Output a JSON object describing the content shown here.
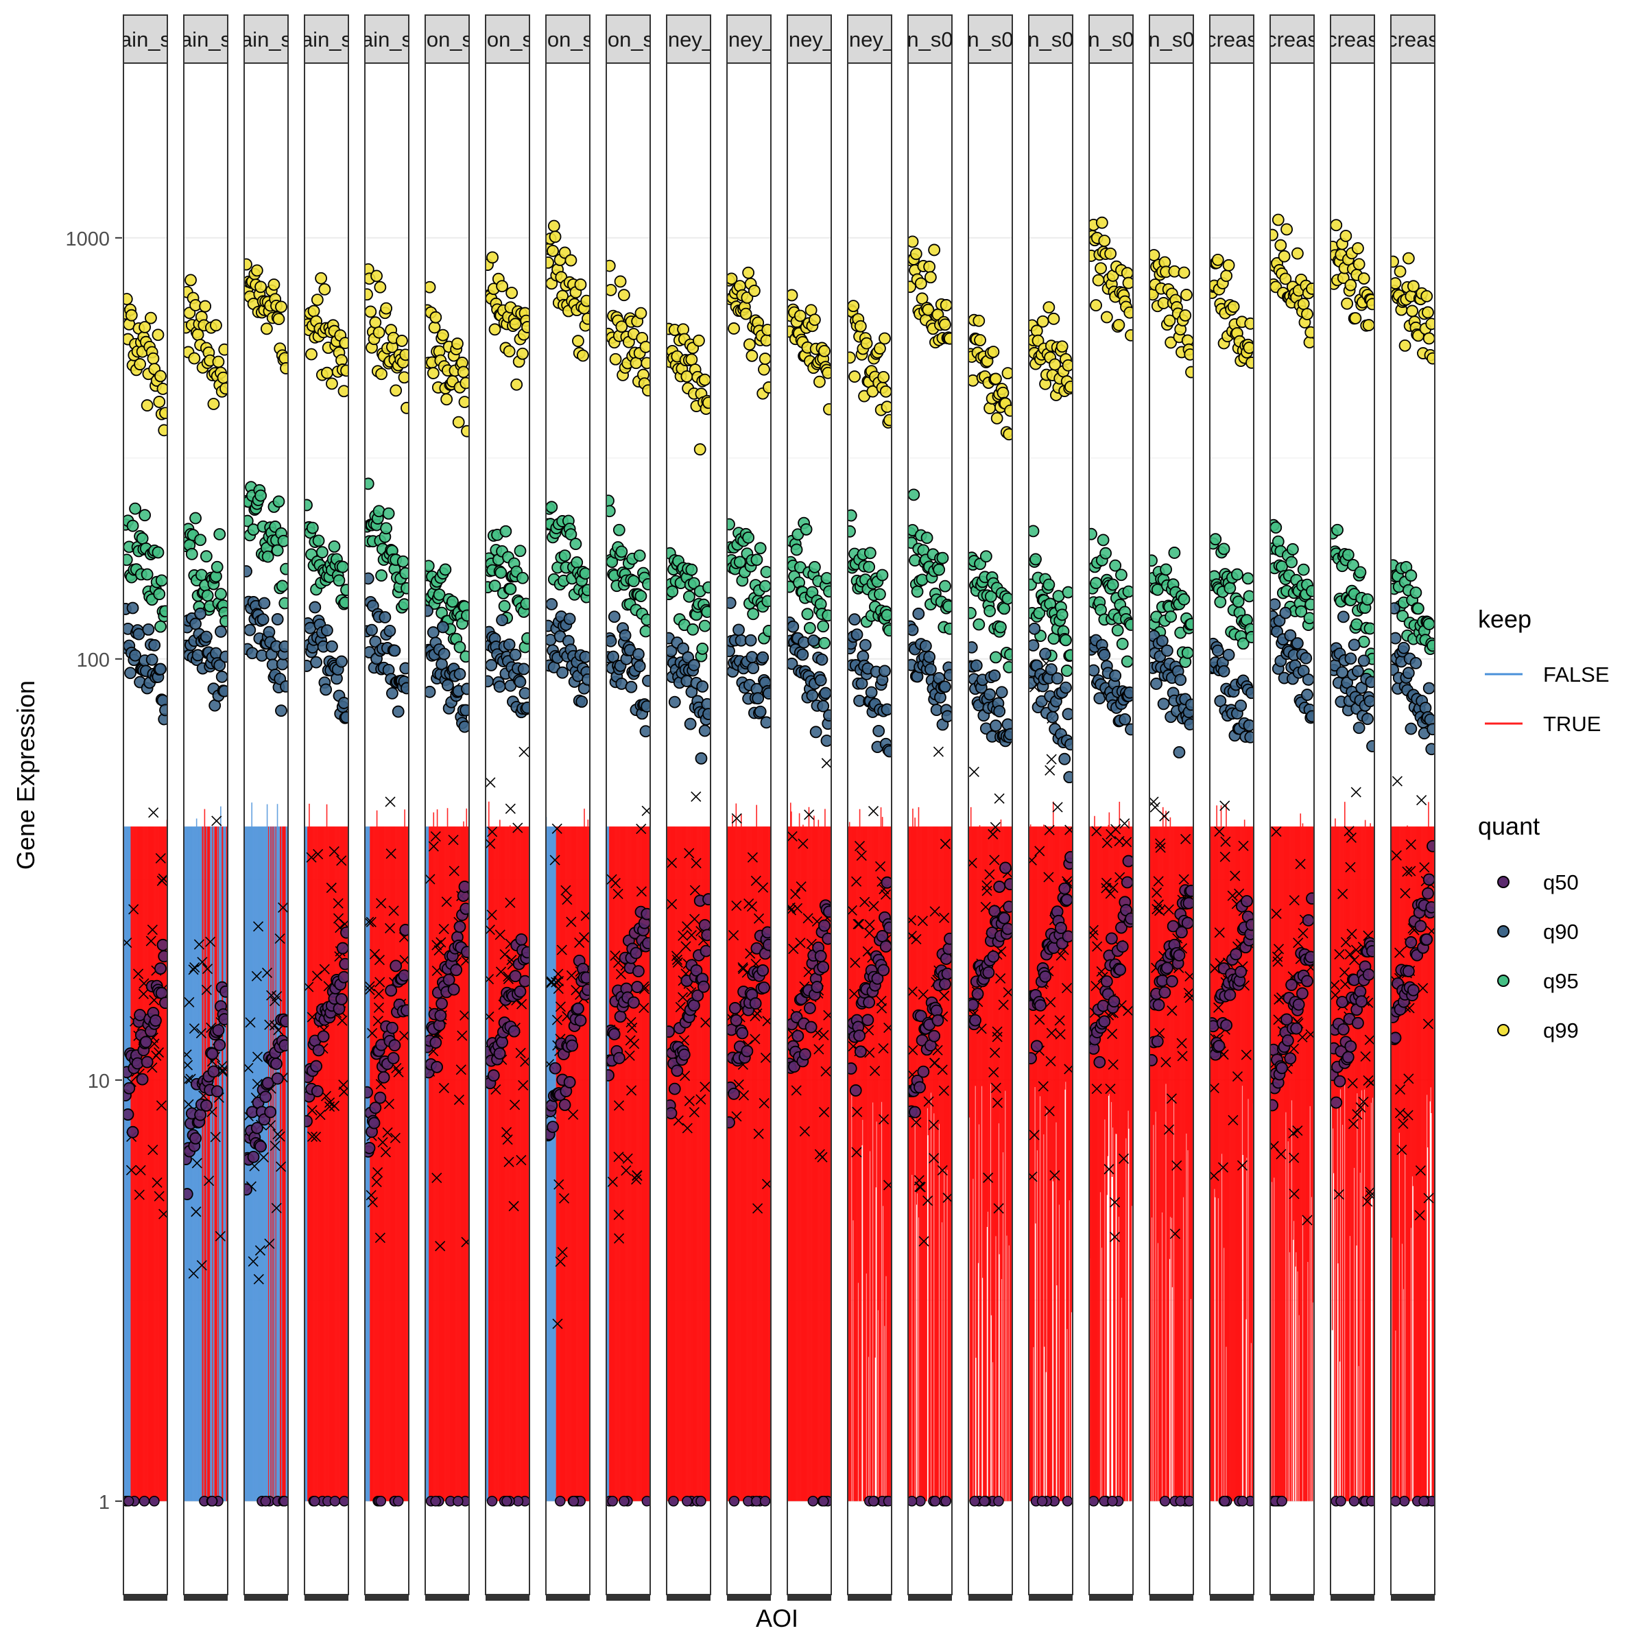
{
  "chart_data": {
    "type": "scatter",
    "title": "",
    "xlabel": "AOI",
    "ylabel": "Gene Expression",
    "y_scale": "log10",
    "ylim": [
      0.6,
      2600
    ],
    "y_ticks": [
      1,
      10,
      100,
      1000
    ],
    "y_tick_labels": [
      "1",
      "10",
      "100",
      "1000"
    ],
    "grid": true,
    "legend_position": "right",
    "panels": [
      "ain_s",
      "ain_s",
      "ain_s",
      "ain_s",
      "ain_s",
      "lon_s",
      "lon_s",
      "lon_s",
      "lon_s",
      "lney_",
      "lney_",
      "lney_",
      "lney_",
      "n_s0",
      "n_s0",
      "n_s0",
      "n_s0",
      "n_s0",
      "creas",
      "creas",
      "creas",
      "creas"
    ],
    "keep_legend": {
      "title": "keep",
      "items": [
        {
          "label": "FALSE",
          "color": "#4a90d9"
        },
        {
          "label": "TRUE",
          "color": "#ff0000"
        }
      ]
    },
    "quant_legend": {
      "title": "quant",
      "items": [
        {
          "label": "q50",
          "color": "#5b2a6e"
        },
        {
          "label": "q90",
          "color": "#3e6689"
        },
        {
          "label": "q95",
          "color": "#44bf84"
        },
        {
          "label": "q99",
          "color": "#f2e13d"
        }
      ]
    },
    "series": [
      {
        "name": "q99",
        "color": "#f2e13d",
        "median_by_panel": [
          520,
          560,
          700,
          560,
          560,
          520,
          650,
          750,
          580,
          470,
          640,
          560,
          520,
          700,
          470,
          520,
          800,
          720,
          660,
          780,
          780,
          680
        ]
      },
      {
        "name": "q95",
        "color": "#44bf84",
        "median_by_panel": [
          170,
          160,
          200,
          170,
          180,
          135,
          155,
          180,
          165,
          140,
          165,
          155,
          155,
          160,
          135,
          130,
          140,
          135,
          140,
          160,
          150,
          130
        ]
      },
      {
        "name": "q90",
        "color": "#3e6689",
        "median_by_panel": [
          95,
          100,
          110,
          100,
          105,
          90,
          95,
          100,
          95,
          85,
          95,
          90,
          88,
          92,
          80,
          80,
          88,
          88,
          85,
          100,
          90,
          82
        ]
      },
      {
        "name": "q50",
        "color": "#5b2a6e",
        "median_by_panel": [
          13,
          10,
          9,
          14,
          12,
          17,
          15,
          12,
          17,
          15,
          15,
          16,
          16,
          14,
          20,
          20,
          18,
          20,
          17,
          14,
          15,
          19
        ]
      }
    ],
    "keep_false_by_panel": [
      0.3,
      0.75,
      0.95,
      0.1,
      0.2,
      0.15,
      0.1,
      0.4,
      0.1,
      0,
      0,
      0,
      0,
      0,
      0,
      0,
      0,
      0,
      0,
      0,
      0,
      0
    ],
    "bar_top_value": 40,
    "bar_bottom_value": 1
  }
}
